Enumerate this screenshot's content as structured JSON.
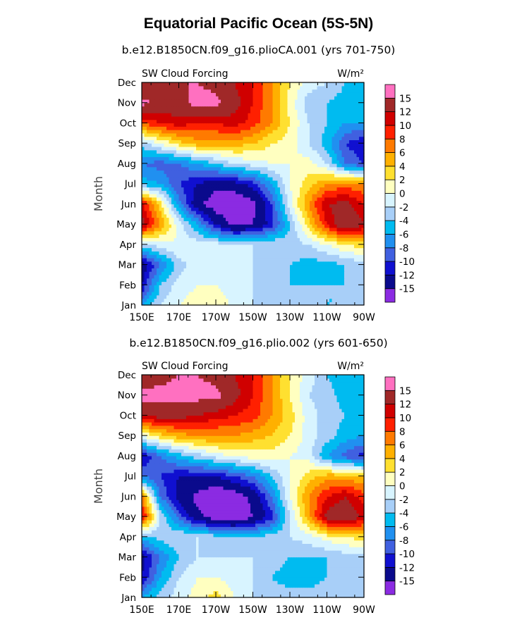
{
  "title": "Equatorial Pacific Ocean (5S-5N)",
  "colors": {
    "levels": [
      "#8B2BE2",
      "#0A0A8C",
      "#1010D0",
      "#4060E0",
      "#2090F0",
      "#00BBF0",
      "#A8CFF8",
      "#D8F4FF",
      "#FFFFC0",
      "#FFE030",
      "#FFB000",
      "#FF7A00",
      "#FF2000",
      "#D00000",
      "#A02828",
      "#FF70C0"
    ]
  },
  "chart_data": [
    {
      "type": "heatmap",
      "panel_title": "b.e12.B1850CN.f09_g16.plioCA.001 (yrs 701-750)",
      "left_label": "SW Cloud Forcing",
      "right_label": "W/m²",
      "ylabel": "Month",
      "x_ticks": [
        "150E",
        "170E",
        "170W",
        "150W",
        "130W",
        "110W",
        "90W"
      ],
      "y_ticks": [
        "Jan",
        "Feb",
        "Mar",
        "Apr",
        "May",
        "Jun",
        "Jul",
        "Aug",
        "Sep",
        "Oct",
        "Nov",
        "Dec"
      ],
      "colorbar_labels": [
        "15",
        "12",
        "10",
        "8",
        "6",
        "4",
        "2",
        "0",
        "-2",
        "-4",
        "-6",
        "-8",
        "-10",
        "-12",
        "-15"
      ],
      "xlim": [
        150,
        270
      ],
      "ylim": [
        1,
        12
      ],
      "x": [
        150,
        160,
        170,
        180,
        190,
        200,
        210,
        220,
        230,
        240,
        250,
        260,
        270
      ],
      "y": [
        1,
        2,
        3,
        4,
        5,
        6,
        7,
        8,
        9,
        10,
        11,
        12
      ],
      "z": [
        [
          -6,
          -2,
          0,
          1,
          2,
          -1,
          -2,
          -3,
          -3,
          -3,
          -4,
          -4,
          -3
        ],
        [
          -12,
          -4,
          -1,
          0,
          0,
          -1,
          -2,
          -3,
          -4,
          -4,
          -4,
          -4,
          -3
        ],
        [
          -14,
          -8,
          -3,
          -1,
          -1,
          -1,
          -2,
          -3,
          -4,
          -5,
          -5,
          -4,
          -3
        ],
        [
          -3,
          -1,
          0,
          -1,
          -1,
          -2,
          -2,
          -2,
          -3,
          -2,
          0,
          2,
          3
        ],
        [
          13,
          6,
          -1,
          -6,
          -12,
          -16,
          -15,
          -11,
          -4,
          3,
          10,
          15,
          12
        ],
        [
          11,
          3,
          -7,
          -14,
          -17,
          -18,
          -16,
          -10,
          -1,
          6,
          12,
          13,
          10
        ],
        [
          -5,
          -6,
          -10,
          -12,
          -14,
          -13,
          -11,
          -6,
          0,
          3,
          6,
          7,
          6
        ],
        [
          -8,
          -9,
          -8,
          -6,
          -4,
          -2,
          -1,
          0,
          0,
          1,
          -2,
          -8,
          -10
        ],
        [
          -3,
          0,
          3,
          5,
          5,
          5,
          4,
          2,
          1,
          -2,
          -5,
          -10,
          -12
        ],
        [
          8,
          10,
          11,
          10,
          10,
          11,
          9,
          6,
          2,
          -2,
          -4,
          -6,
          -6
        ],
        [
          16,
          14,
          14,
          16,
          16,
          13,
          10,
          6,
          1,
          -3,
          -4,
          -5,
          -5
        ],
        [
          12,
          13,
          15,
          15,
          14,
          12,
          10,
          6,
          2,
          -1,
          -2,
          -4,
          -4
        ]
      ]
    },
    {
      "type": "heatmap",
      "panel_title": "b.e12.B1850CN.f09_g16.plio.002 (yrs 601-650)",
      "left_label": "SW Cloud Forcing",
      "right_label": "W/m²",
      "ylabel": "Month",
      "x_ticks": [
        "150E",
        "170E",
        "170W",
        "150W",
        "130W",
        "110W",
        "90W"
      ],
      "y_ticks": [
        "Jan",
        "Feb",
        "Mar",
        "Apr",
        "May",
        "Jun",
        "Jul",
        "Aug",
        "Sep",
        "Oct",
        "Nov",
        "Dec"
      ],
      "colorbar_labels": [
        "15",
        "12",
        "10",
        "8",
        "6",
        "4",
        "2",
        "0",
        "-2",
        "-4",
        "-6",
        "-8",
        "-10",
        "-12",
        "-15"
      ],
      "xlim": [
        150,
        270
      ],
      "ylim": [
        1,
        12
      ],
      "x": [
        150,
        160,
        170,
        180,
        190,
        200,
        210,
        220,
        230,
        240,
        250,
        260,
        270
      ],
      "y": [
        1,
        2,
        3,
        4,
        5,
        6,
        7,
        8,
        9,
        10,
        11,
        12
      ],
      "z": [
        [
          -6,
          -3,
          -1,
          1,
          3,
          0,
          -2,
          -3,
          -3,
          -3,
          -3,
          -3,
          -2
        ],
        [
          -12,
          -6,
          -2,
          0,
          0,
          -1,
          -2,
          -4,
          -5,
          -5,
          -4,
          -4,
          -3
        ],
        [
          -13,
          -8,
          -4,
          -2,
          -2,
          -2,
          -2,
          -3,
          -4,
          -4,
          -4,
          -3,
          -3
        ],
        [
          -5,
          -3,
          -2,
          -2,
          -3,
          -4,
          -4,
          -3,
          -2,
          -1,
          1,
          2,
          3
        ],
        [
          11,
          -2,
          -9,
          -14,
          -17,
          -18,
          -15,
          -11,
          -2,
          5,
          13,
          15,
          11
        ],
        [
          7,
          -8,
          -13,
          -16,
          -18,
          -17,
          -14,
          -8,
          0,
          6,
          10,
          12,
          9
        ],
        [
          -8,
          -10,
          -12,
          -12,
          -12,
          -10,
          -8,
          -4,
          0,
          3,
          5,
          5,
          4
        ],
        [
          -12,
          -8,
          -5,
          -3,
          -1,
          0,
          1,
          1,
          0,
          -1,
          -6,
          -9,
          -11
        ],
        [
          0,
          3,
          5,
          6,
          6,
          6,
          5,
          4,
          2,
          -1,
          -3,
          -5,
          -6
        ],
        [
          12,
          13,
          13,
          12,
          11,
          10,
          9,
          6,
          3,
          -1,
          -3,
          -4,
          -5
        ],
        [
          16,
          16,
          16,
          16,
          16,
          13,
          10,
          6,
          2,
          -2,
          -3,
          -5,
          -5
        ],
        [
          13,
          14,
          15,
          15,
          14,
          12,
          10,
          6,
          2,
          -1,
          -4,
          -6,
          -5
        ]
      ]
    }
  ]
}
